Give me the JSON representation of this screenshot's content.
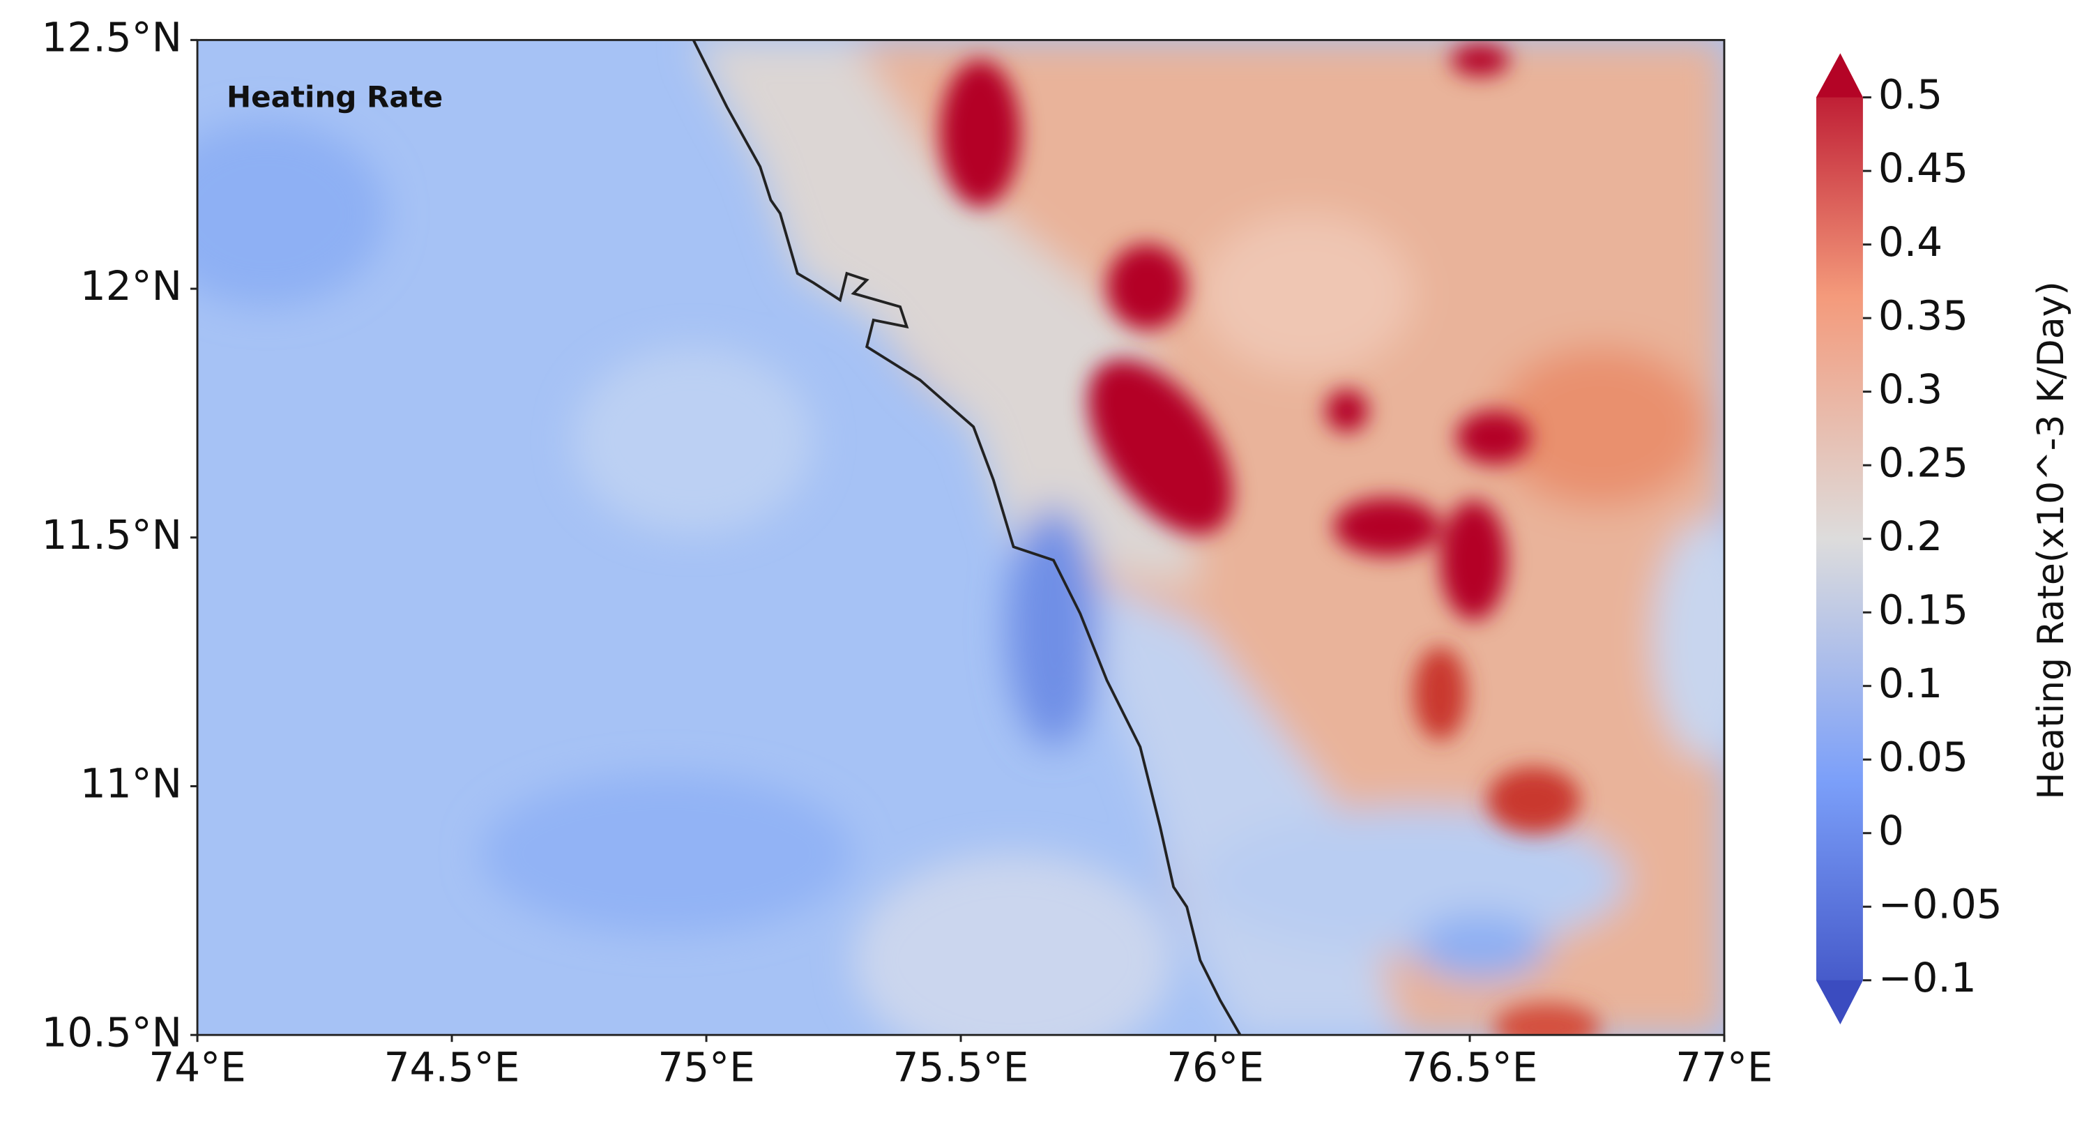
{
  "chart_data": {
    "type": "heatmap",
    "title": "Heating Rate",
    "colorbar_label": "Heating Rate(x10^-3 K/Day)",
    "xlim": [
      74,
      77
    ],
    "xticks": [
      {
        "value": 74,
        "label": "74°E"
      },
      {
        "value": 74.5,
        "label": "74.5°E"
      },
      {
        "value": 75,
        "label": "75°E"
      },
      {
        "value": 75.5,
        "label": "75.5°E"
      },
      {
        "value": 76,
        "label": "76°E"
      },
      {
        "value": 76.5,
        "label": "76.5°E"
      },
      {
        "value": 77,
        "label": "77°E"
      }
    ],
    "ylim": [
      10.5,
      12.5
    ],
    "yticks": [
      {
        "value": 10.5,
        "label": "10.5°N"
      },
      {
        "value": 11,
        "label": "11°N"
      },
      {
        "value": 11.5,
        "label": "11.5°N"
      },
      {
        "value": 12,
        "label": "12°N"
      },
      {
        "value": 12.5,
        "label": "12.5°N"
      }
    ],
    "clim": [
      -0.1,
      0.5
    ],
    "cticks": [
      {
        "value": -0.1,
        "label": "−0.1"
      },
      {
        "value": -0.05,
        "label": "−0.05"
      },
      0,
      0.05,
      0.1,
      0.15,
      0.2,
      0.25,
      0.3,
      0.35,
      0.4,
      0.45,
      0.5
    ]
  }
}
